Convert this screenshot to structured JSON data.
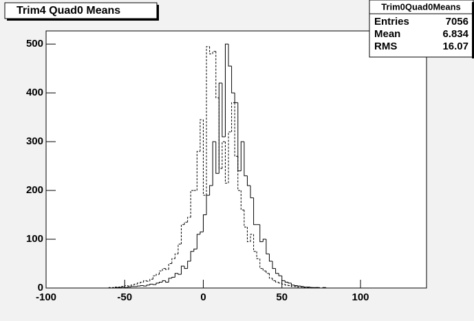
{
  "chart_data": {
    "type": "histogram",
    "title": "Trim4 Quad0 Means",
    "bins": [
      -60,
      -58,
      -56,
      -54,
      -52,
      -50,
      -48,
      -46,
      -44,
      -42,
      -40,
      -38,
      -36,
      -34,
      -32,
      -30,
      -28,
      -26,
      -24,
      -22,
      -20,
      -18,
      -16,
      -14,
      -12,
      -10,
      -8,
      -6,
      -4,
      -2,
      0,
      2,
      4,
      6,
      8,
      10,
      12,
      14,
      16,
      18,
      20,
      22,
      24,
      26,
      28,
      30,
      32,
      34,
      36,
      38,
      40,
      42,
      44,
      46,
      48,
      50,
      52,
      54,
      56,
      58,
      60,
      62,
      64,
      66,
      68,
      70,
      72,
      74,
      76,
      78,
      80,
      82,
      84,
      86
    ],
    "series": [
      {
        "color": "#000000",
        "dash": false,
        "values": [
          0,
          0,
          1,
          1,
          2,
          1,
          2,
          3,
          3,
          4,
          5,
          4,
          6,
          8,
          7,
          10,
          12,
          15,
          12,
          20,
          22,
          30,
          28,
          45,
          40,
          55,
          75,
          80,
          110,
          115,
          150,
          190,
          210,
          300,
          235,
          420,
          310,
          500,
          455,
          400,
          380,
          240,
          300,
          230,
          210,
          185,
          130,
          130,
          95,
          100,
          70,
          55,
          40,
          30,
          25,
          15,
          12,
          10,
          6,
          5,
          4,
          3,
          2,
          2,
          1,
          1,
          1,
          0,
          1,
          0,
          0,
          0,
          0
        ]
      },
      {
        "color": "#000000",
        "dash": true,
        "values": [
          1,
          1,
          2,
          2,
          3,
          5,
          4,
          6,
          8,
          10,
          12,
          15,
          14,
          18,
          25,
          28,
          35,
          40,
          38,
          50,
          60,
          70,
          90,
          130,
          135,
          145,
          200,
          200,
          280,
          345,
          190,
          495,
          480,
          485,
          390,
          245,
          300,
          215,
          320,
          380,
          270,
          200,
          160,
          125,
          95,
          110,
          75,
          60,
          40,
          35,
          30,
          20,
          15,
          12,
          10,
          8,
          6,
          5,
          3,
          3,
          2,
          2,
          1,
          1,
          1,
          0,
          1,
          0,
          0,
          0,
          0,
          0,
          0
        ]
      }
    ],
    "xlim": [
      -100,
      142
    ],
    "xticks": [
      -100,
      -50,
      0,
      50,
      100
    ],
    "ylim": [
      0,
      527
    ],
    "yticks": [
      0,
      100,
      200,
      300,
      400,
      500
    ],
    "stats": {
      "title": "Trim0Quad0Means",
      "rows": [
        [
          "Entries",
          7056
        ],
        [
          "Mean",
          6.834
        ],
        [
          "RMS",
          16.07
        ]
      ]
    }
  }
}
